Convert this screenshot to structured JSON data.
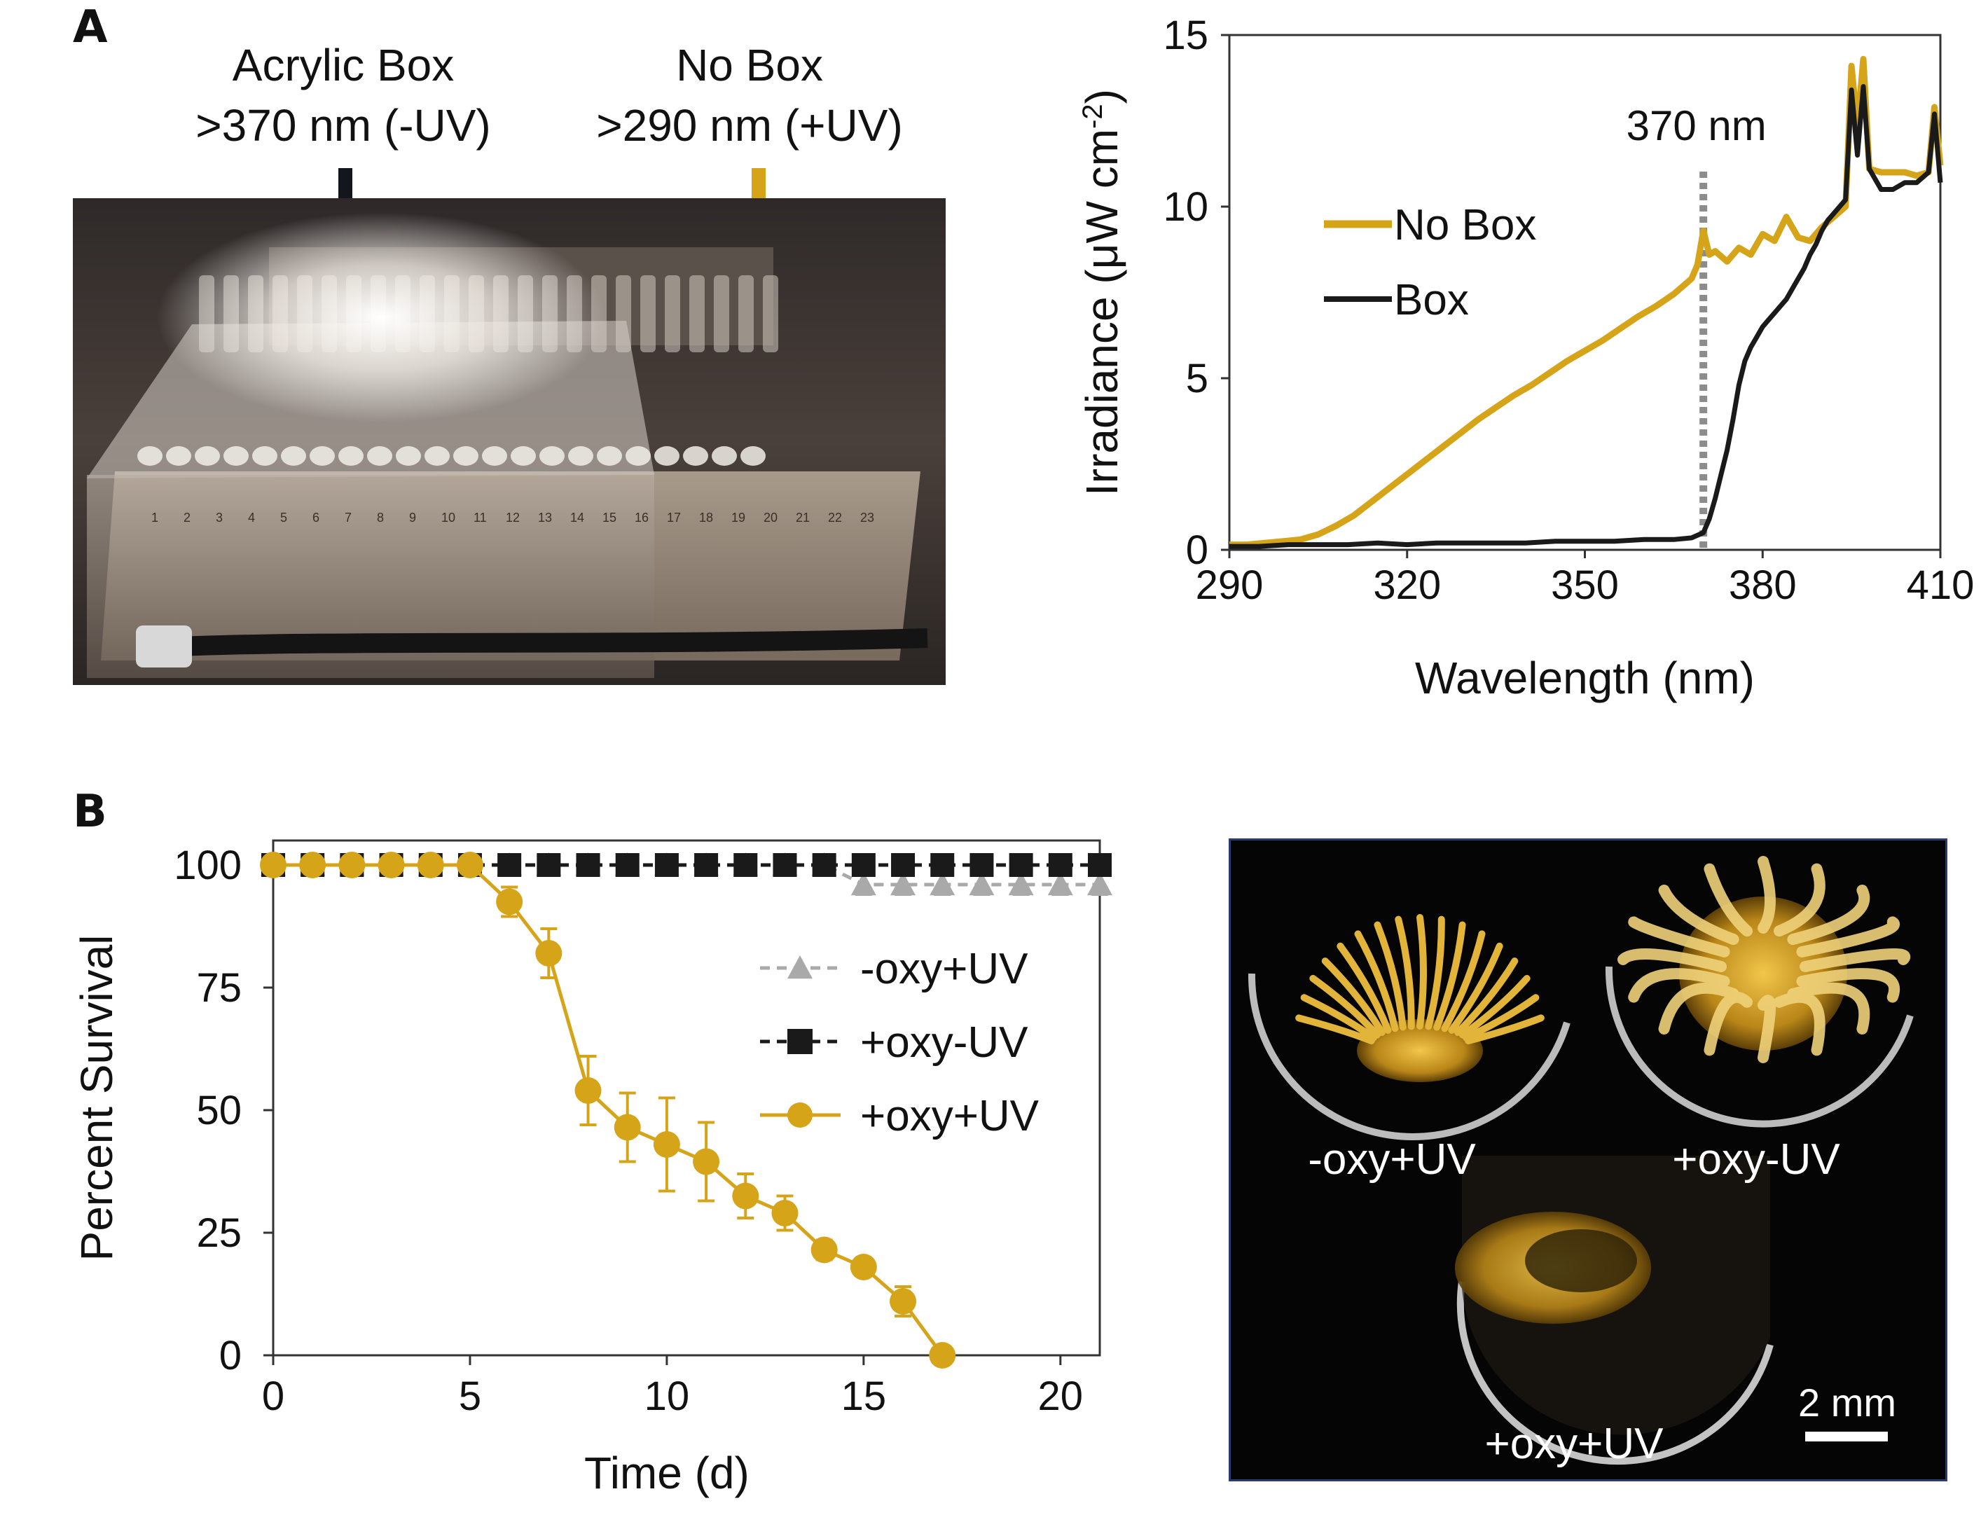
{
  "panel_a": {
    "letter": "A",
    "photo": {
      "box_label_line1": "Acrylic Box",
      "box_label_line2": ">370 nm (-UV)",
      "nobox_label_line1": "No Box",
      "nobox_label_line2": ">290 nm (+UV)",
      "tube_numbers": [
        "1",
        "2",
        "3",
        "4",
        "5",
        "6",
        "7",
        "8",
        "9",
        "10",
        "11",
        "12",
        "13",
        "14",
        "15",
        "16",
        "17",
        "18",
        "19",
        "20",
        "21",
        "22",
        "23"
      ]
    }
  },
  "panel_b": {
    "letter": "B",
    "micrograph": {
      "labels": [
        "-oxy+UV",
        "+oxy-UV",
        "+oxy+UV"
      ],
      "scale_label": "2 mm"
    }
  },
  "colors": {
    "gold": "#d6a419",
    "black": "#1a1a1a",
    "gray": "#a9a9a9",
    "dotted": "#8c8c8c"
  },
  "chart_data": [
    {
      "id": "irradiance",
      "type": "line",
      "title": "",
      "xlabel": "Wavelength (nm)",
      "ylabel": "Irradiance (μW cm⁻²)",
      "ylabel_main": "Irradiance (μW cm",
      "ylabel_sup": "-2",
      "ylabel_end": ")",
      "xlim": [
        290,
        410
      ],
      "ylim": [
        0,
        15
      ],
      "xticks": [
        290,
        320,
        350,
        380,
        410
      ],
      "yticks": [
        0,
        5,
        10,
        15
      ],
      "annotation": {
        "text": "370 nm",
        "x": 370
      },
      "legend": [
        "No Box",
        "Box"
      ],
      "legend_position": "upper-left",
      "series": [
        {
          "name": "No Box",
          "x": [
            290,
            293,
            296,
            299,
            302,
            305,
            308,
            311,
            314,
            317,
            320,
            323,
            326,
            329,
            332,
            335,
            338,
            341,
            344,
            347,
            350,
            353,
            356,
            359,
            362,
            365,
            368,
            369,
            370,
            371,
            372,
            374,
            376,
            378,
            380,
            382,
            384,
            386,
            388,
            390,
            392,
            394,
            395,
            396,
            397,
            398,
            400,
            402,
            404,
            406,
            408,
            409,
            410
          ],
          "y": [
            0.15,
            0.15,
            0.2,
            0.25,
            0.3,
            0.45,
            0.7,
            1.0,
            1.4,
            1.8,
            2.2,
            2.6,
            3.0,
            3.4,
            3.8,
            4.15,
            4.5,
            4.8,
            5.15,
            5.5,
            5.8,
            6.1,
            6.45,
            6.8,
            7.1,
            7.45,
            7.9,
            8.3,
            9.3,
            8.6,
            8.7,
            8.4,
            8.8,
            8.6,
            9.2,
            9.0,
            9.7,
            9.1,
            9.0,
            9.4,
            9.7,
            10.0,
            14.1,
            12.3,
            14.3,
            11.1,
            11.0,
            11.0,
            11.0,
            10.9,
            11.0,
            12.9,
            11.2
          ]
        },
        {
          "name": "Box",
          "x": [
            290,
            295,
            300,
            305,
            310,
            315,
            320,
            325,
            330,
            335,
            340,
            345,
            350,
            355,
            360,
            365,
            368,
            370,
            371,
            372,
            373,
            374,
            375,
            376,
            377,
            378,
            379,
            380,
            381,
            382,
            383,
            384,
            385,
            386,
            387,
            388,
            389,
            390,
            391,
            392,
            393,
            394,
            395,
            396,
            397,
            398,
            400,
            402,
            404,
            406,
            408,
            409,
            410
          ],
          "y": [
            0.1,
            0.1,
            0.15,
            0.15,
            0.15,
            0.2,
            0.15,
            0.2,
            0.2,
            0.2,
            0.2,
            0.25,
            0.25,
            0.25,
            0.3,
            0.3,
            0.35,
            0.5,
            0.9,
            1.5,
            2.2,
            2.9,
            3.8,
            4.8,
            5.5,
            5.9,
            6.2,
            6.5,
            6.7,
            6.9,
            7.1,
            7.3,
            7.6,
            7.9,
            8.2,
            8.6,
            8.9,
            9.3,
            9.6,
            9.8,
            10.0,
            10.2,
            13.4,
            11.5,
            13.5,
            11.1,
            10.5,
            10.5,
            10.7,
            10.7,
            11.0,
            12.7,
            10.7
          ]
        }
      ]
    },
    {
      "id": "survival",
      "type": "line",
      "title": "",
      "xlabel": "Time (d)",
      "ylabel": "Percent Survival",
      "xlim": [
        0,
        21
      ],
      "ylim": [
        0,
        105
      ],
      "xticks": [
        0,
        5,
        10,
        15,
        20
      ],
      "yticks": [
        0,
        25,
        50,
        75,
        100
      ],
      "legend": [
        "-oxy+UV",
        "+oxy-UV",
        "+oxy+UV"
      ],
      "legend_position": "center-right",
      "series": [
        {
          "name": "-oxy+UV",
          "marker": "triangle",
          "line_style": "dashed",
          "x": [
            0,
            1,
            2,
            3,
            4,
            5,
            6,
            7,
            8,
            9,
            10,
            11,
            12,
            13,
            14,
            15,
            16,
            17,
            18,
            19,
            20,
            21
          ],
          "y": [
            100,
            100,
            100,
            100,
            100,
            100,
            100,
            100,
            100,
            100,
            100,
            100,
            100,
            100,
            100,
            96,
            96,
            96,
            96,
            96,
            96,
            96
          ],
          "err": [
            0,
            0,
            0,
            0,
            0,
            0,
            0,
            0,
            0,
            0,
            0,
            0,
            0,
            0,
            0,
            2,
            2,
            2,
            2,
            2,
            2,
            2
          ]
        },
        {
          "name": "+oxy-UV",
          "marker": "square",
          "line_style": "dashed",
          "x": [
            0,
            1,
            2,
            3,
            4,
            5,
            6,
            7,
            8,
            9,
            10,
            11,
            12,
            13,
            14,
            15,
            16,
            17,
            18,
            19,
            20,
            21
          ],
          "y": [
            100,
            100,
            100,
            100,
            100,
            100,
            100,
            100,
            100,
            100,
            100,
            100,
            100,
            100,
            100,
            100,
            100,
            100,
            100,
            100,
            100,
            100
          ],
          "err": [
            0,
            0,
            0,
            0,
            0,
            0,
            0,
            0,
            0,
            0,
            0,
            0,
            0,
            0,
            0,
            0,
            0,
            0,
            0,
            0,
            0,
            0
          ]
        },
        {
          "name": "+oxy+UV",
          "marker": "circle",
          "line_style": "solid",
          "x": [
            0,
            1,
            2,
            3,
            4,
            5,
            6,
            7,
            8,
            9,
            10,
            11,
            12,
            13,
            14,
            15,
            16,
            17
          ],
          "y": [
            100,
            100,
            100,
            100,
            100,
            100,
            92.5,
            82,
            54,
            46.5,
            43,
            39.5,
            32.5,
            29,
            21.5,
            18,
            11,
            0
          ],
          "err": [
            0,
            0,
            0,
            0,
            0,
            0,
            3,
            5,
            7,
            7,
            9.5,
            8,
            4.5,
            3.5,
            2,
            1.5,
            3,
            0
          ]
        }
      ]
    }
  ]
}
